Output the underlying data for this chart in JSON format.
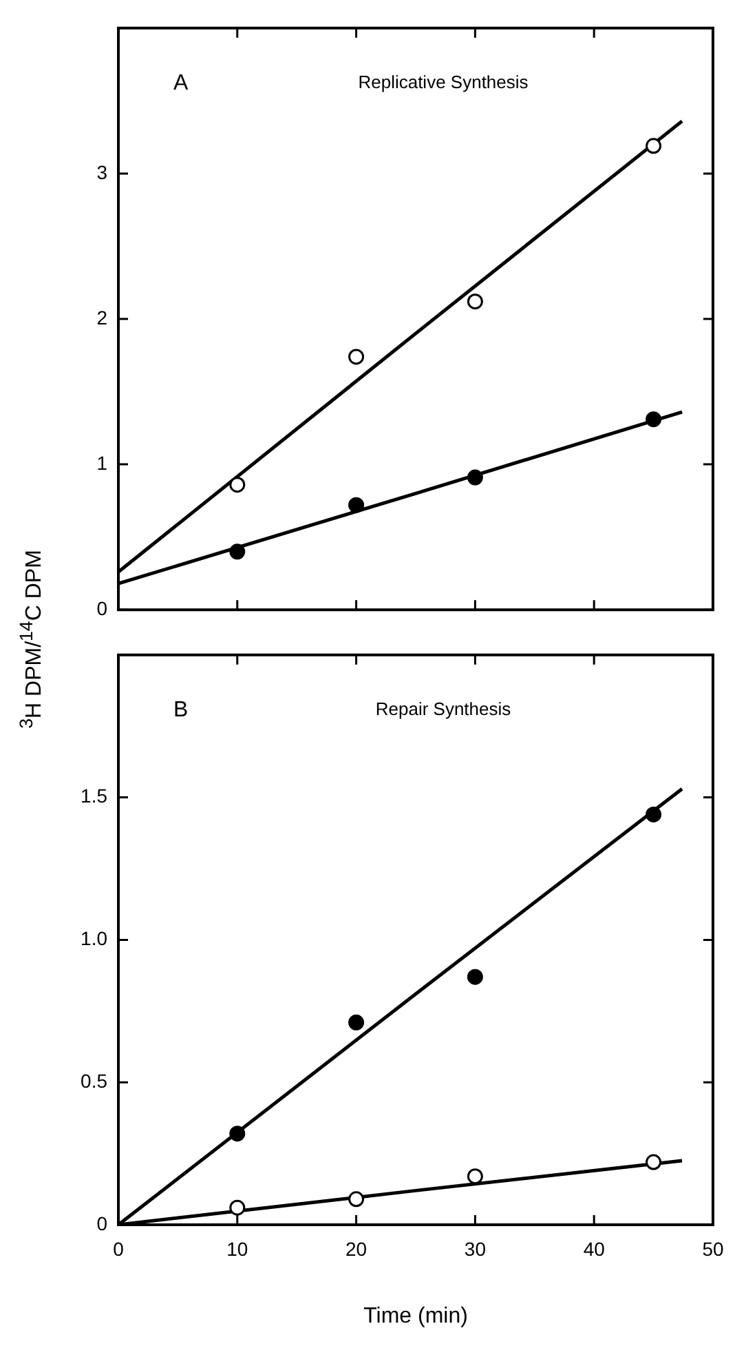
{
  "chart_data": [
    {
      "type": "scatter",
      "annotations": [
        "A",
        "Replicative Synthesis"
      ],
      "x": [
        10,
        20,
        30,
        45
      ],
      "marker": "circle",
      "tick_labels": "y",
      "xlim": [
        0,
        50
      ],
      "xticks": [
        {
          "value": 0,
          "label": null
        },
        {
          "value": 10,
          "label": null
        },
        {
          "value": 20,
          "label": null
        },
        {
          "value": 30,
          "label": null
        },
        {
          "value": 40,
          "label": null
        },
        {
          "value": 50,
          "label": null
        }
      ],
      "ylim": [
        0,
        4
      ],
      "yticks": [
        0,
        1,
        2,
        3
      ],
      "series": [
        {
          "type": "scatter",
          "color": "#ffffff",
          "values": [
            0.86,
            1.74,
            2.12,
            3.19
          ]
        },
        {
          "type": "scatter",
          "color": "#000000",
          "values": [
            0.4,
            0.72,
            0.91,
            1.31
          ]
        },
        {
          "type": "line",
          "marker": "none",
          "color": "#000000",
          "x": [
            0,
            25,
            47.4
          ],
          "values": [
            0.26,
            1.9,
            3.36
          ]
        },
        {
          "type": "line",
          "marker": "none",
          "color": "#000000",
          "x": [
            0,
            25,
            47.4
          ],
          "values": [
            0.18,
            0.8,
            1.36
          ]
        }
      ]
    },
    {
      "type": "scatter",
      "annotations": [
        "B",
        "Repair Synthesis"
      ],
      "x": [
        10,
        20,
        30,
        45
      ],
      "marker": "circle",
      "xlabel": "Time (min)",
      "ylabel": "$^{3}$H DPM/$^{14}$C DPM",
      "xlim": [
        0,
        50
      ],
      "xticks": [
        0,
        10,
        20,
        30,
        40,
        50
      ],
      "ylim": [
        0,
        2
      ],
      "yticks": [
        0,
        {
          "value": 0.5,
          "label": "0.5"
        },
        {
          "value": 1,
          "label": "1.0"
        },
        {
          "value": 1.5,
          "label": "1.5"
        }
      ],
      "series": [
        {
          "type": "scatter",
          "color": "#000000",
          "values": [
            0.32,
            0.71,
            0.87,
            1.44
          ]
        },
        {
          "type": "scatter",
          "color": "#ffffff",
          "values": [
            0.06,
            0.09,
            0.17,
            0.22
          ]
        },
        {
          "type": "line",
          "marker": "none",
          "color": "#000000",
          "x": [
            0,
            25,
            47.4
          ],
          "values": [
            0,
            0.81,
            1.53
          ]
        },
        {
          "type": "line",
          "marker": "none",
          "color": "#000000",
          "x": [
            0,
            25,
            47.4
          ],
          "values": [
            0,
            0.12,
            0.225
          ]
        }
      ]
    }
  ]
}
